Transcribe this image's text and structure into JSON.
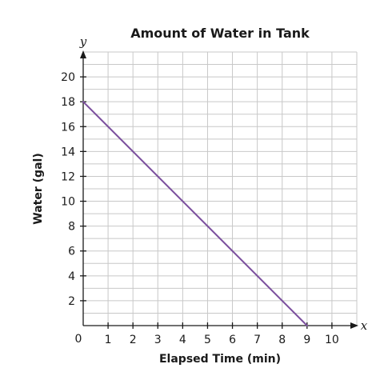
{
  "chart_data": {
    "type": "line",
    "title": "Amount of Water in Tank",
    "xlabel": "Elapsed Time (min)",
    "ylabel": "Water (gal)",
    "x_axis_var": "x",
    "y_axis_var": "y",
    "origin_label": "0",
    "xlim": [
      0,
      11
    ],
    "ylim": [
      0,
      22
    ],
    "x_ticks": [
      1,
      2,
      3,
      4,
      5,
      6,
      7,
      8,
      9,
      10
    ],
    "y_ticks": [
      2,
      4,
      6,
      8,
      10,
      12,
      14,
      16,
      18,
      20
    ],
    "grid": true,
    "series": [
      {
        "x": [
          0,
          9
        ],
        "y": [
          18,
          0
        ],
        "color": "#7b4f9e"
      }
    ]
  }
}
